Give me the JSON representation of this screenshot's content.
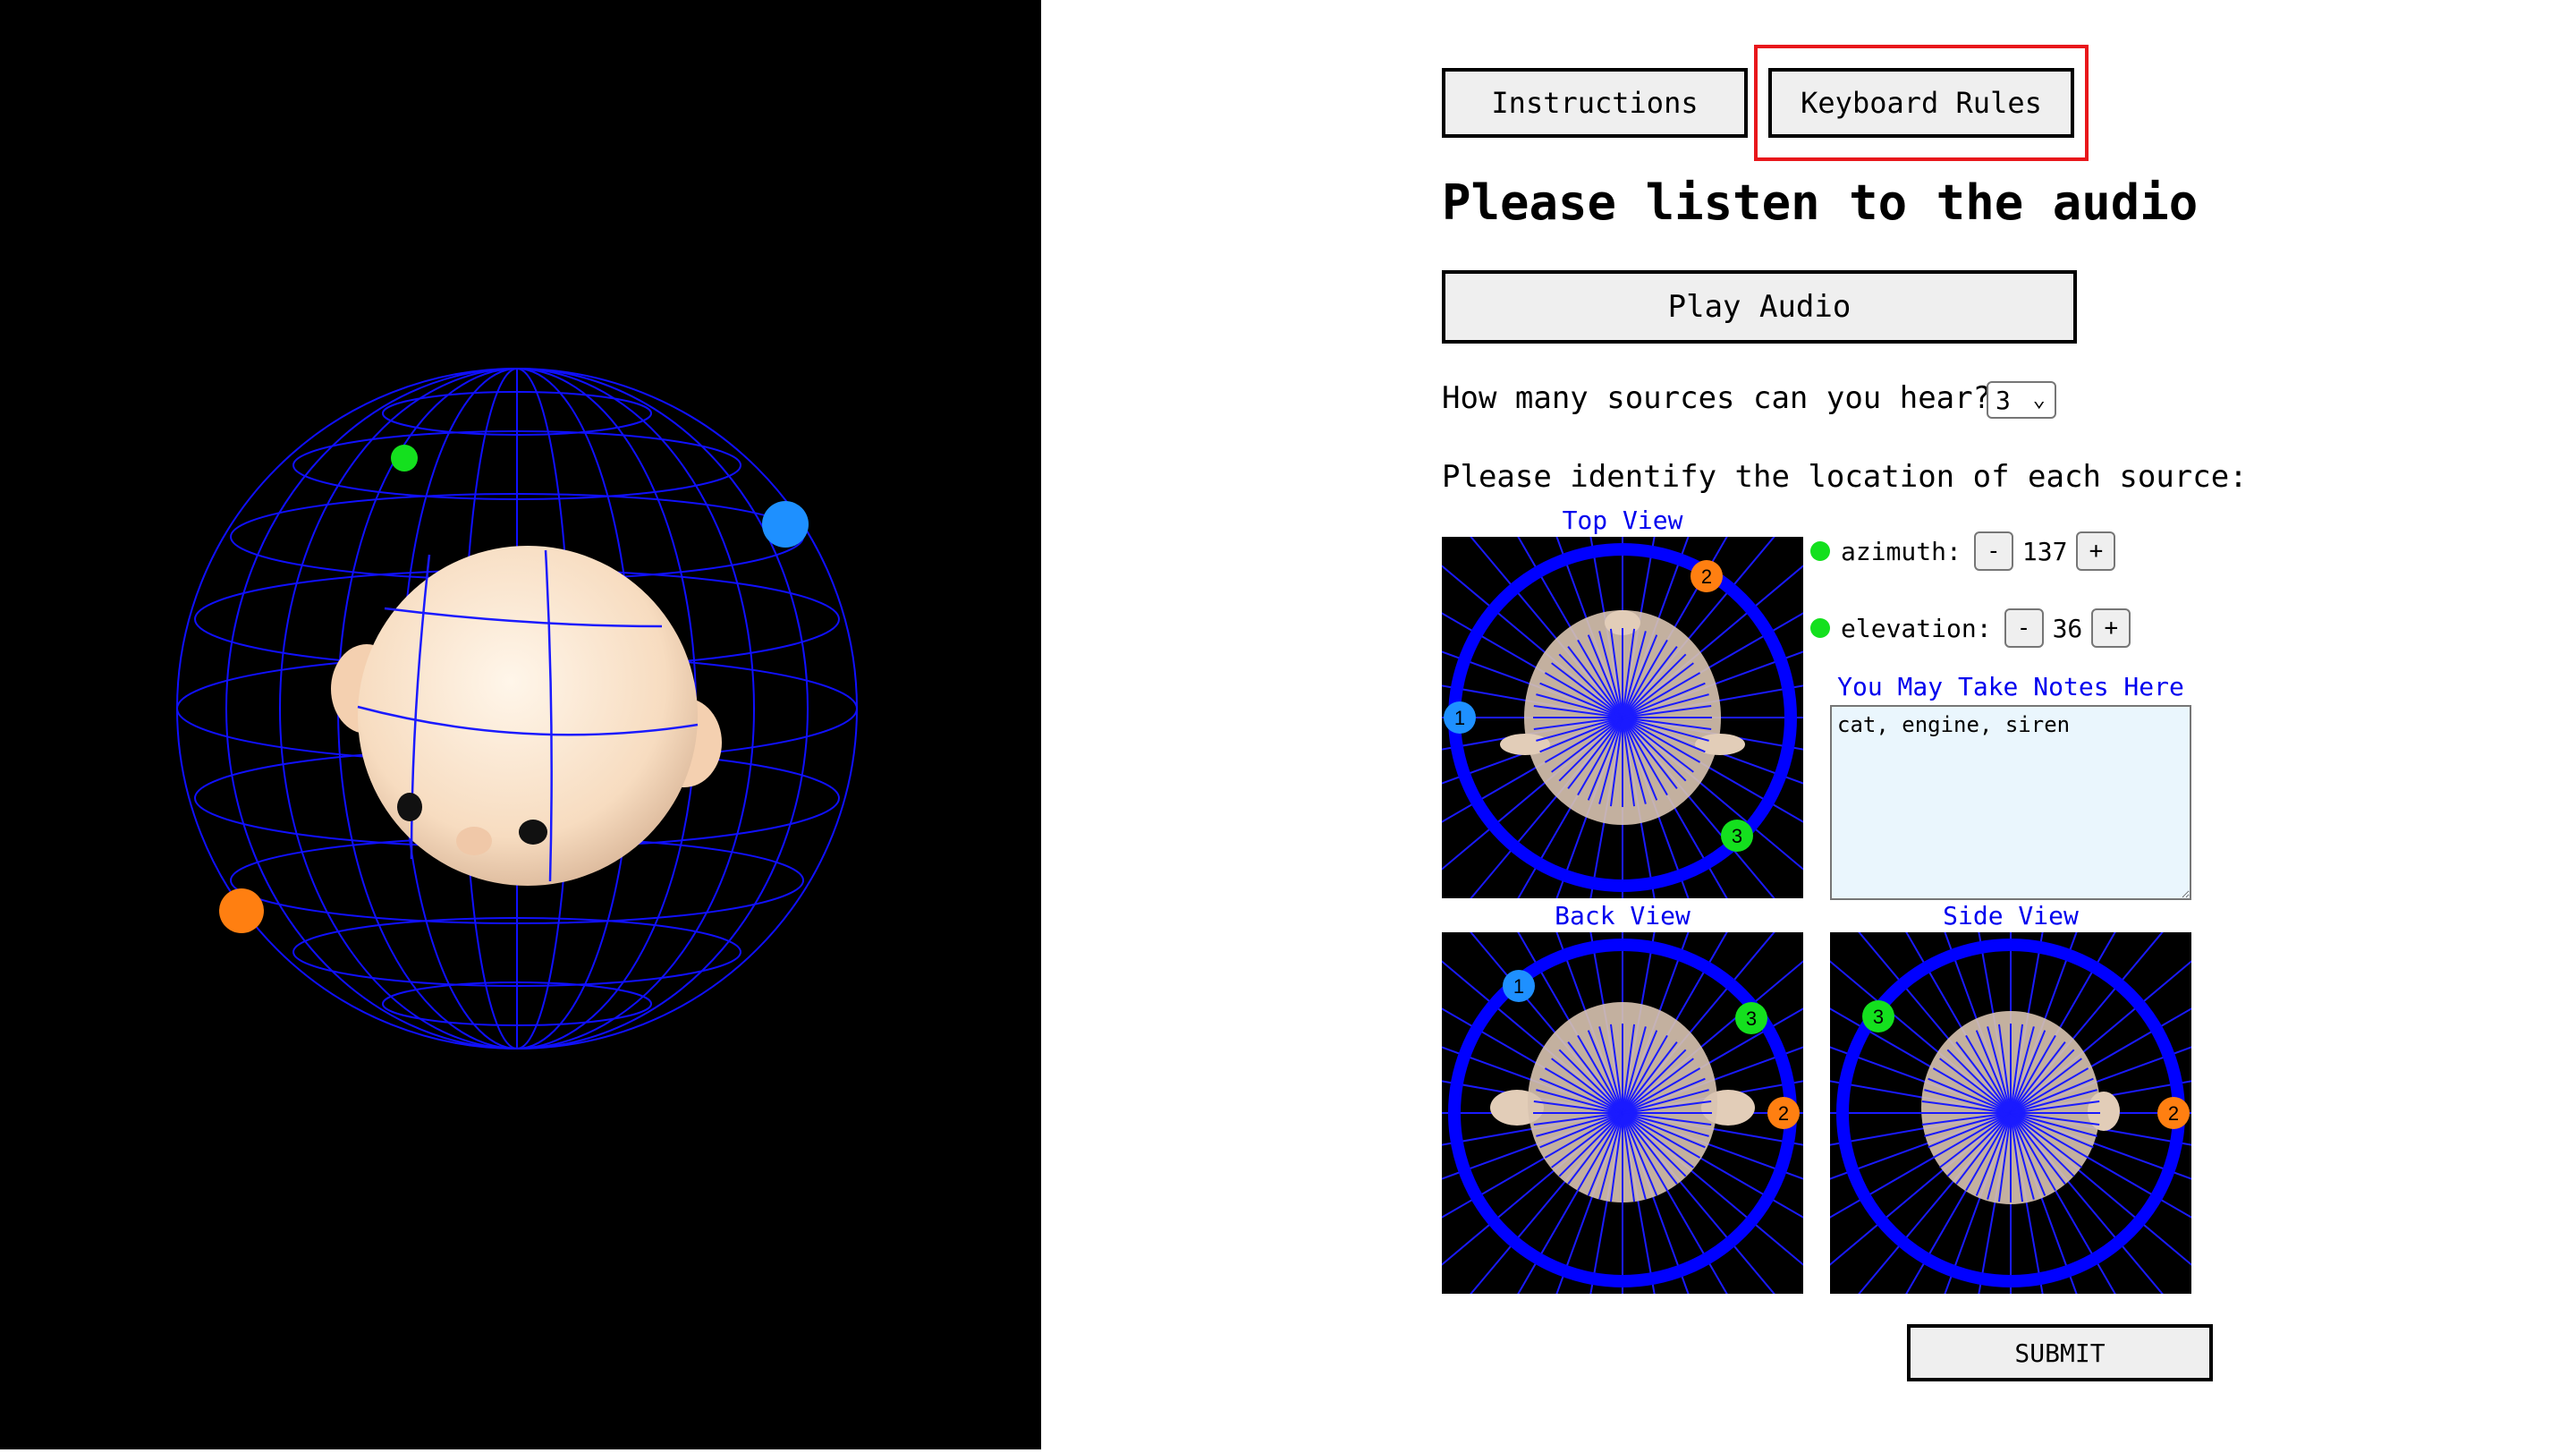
{
  "buttons": {
    "instructions": "Instructions",
    "keyboard_rules": "Keyboard Rules",
    "play_audio": "Play Audio",
    "submit": "SUBMIT"
  },
  "heading": "Please listen to the audio",
  "question_sources": "How many sources can you hear?",
  "sources_select": {
    "value": "3"
  },
  "question_locate": "Please identify the location of each source:",
  "views": {
    "top": "Top View",
    "back": "Back View",
    "side": "Side View"
  },
  "controls": {
    "azimuth_label": "azimuth:",
    "azimuth_value": "137",
    "elevation_label": "elevation:",
    "elevation_value": "36",
    "minus": "-",
    "plus": "+"
  },
  "notes": {
    "title": "You May Take Notes Here",
    "value": "cat, engine, siren"
  },
  "source_markers": [
    {
      "label": "1",
      "color": "#1e90ff"
    },
    {
      "label": "2",
      "color": "#ff7f11"
    },
    {
      "label": "3",
      "color": "#14e01e"
    }
  ],
  "colors": {
    "highlight": "#e8171b",
    "link_blue": "#0000ee",
    "ring_blue": "#0000ff",
    "notes_bg": "#eaf6fd"
  }
}
